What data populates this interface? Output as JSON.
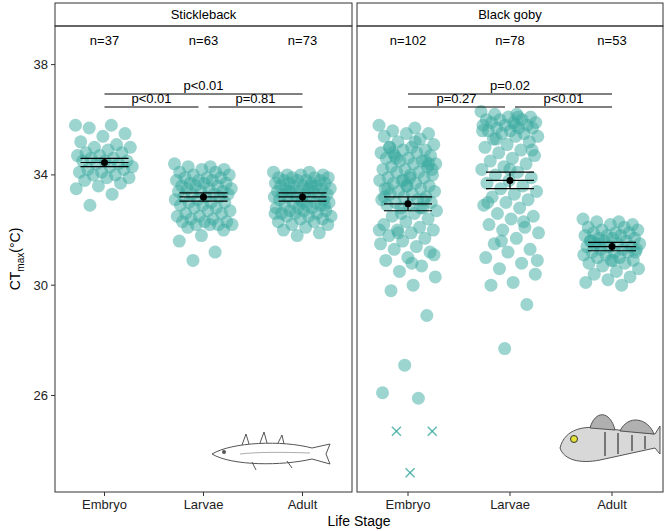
{
  "chart_data": {
    "type": "scatter",
    "x_label": "Life Stage",
    "y_label": [
      "CT",
      "max",
      "(°C)"
    ],
    "categories": [
      "Embryo",
      "Larvae",
      "Adult"
    ],
    "ylim": [
      22.5,
      39.4
    ],
    "yticks": [
      26,
      30,
      34,
      38
    ],
    "color": "#3aa99f",
    "grid": false,
    "marker": "circle",
    "panels": [
      {
        "title": "Stickleback",
        "groups": [
          {
            "n_label": "n=37",
            "mean": 34.45,
            "ci": [
              34.3,
              34.6
            ],
            "values": [
              35.8,
              35.8,
              35.7,
              35.5,
              35.4,
              35.2,
              35.1,
              35.0,
              35.0,
              34.9,
              34.8,
              34.8,
              34.7,
              34.7,
              34.6,
              34.6,
              34.5,
              34.5,
              34.5,
              34.4,
              34.4,
              34.3,
              34.3,
              34.2,
              34.2,
              34.1,
              34.1,
              34.0,
              34.0,
              33.9,
              33.9,
              33.8,
              33.7,
              33.6,
              33.5,
              33.3,
              32.9
            ]
          },
          {
            "n_label": "n=63",
            "mean": 33.2,
            "ci": [
              33.05,
              33.35
            ],
            "values": [
              34.4,
              34.3,
              34.3,
              34.2,
              34.2,
              34.1,
              34.1,
              34.0,
              34.0,
              33.9,
              33.9,
              33.9,
              33.8,
              33.8,
              33.8,
              33.7,
              33.7,
              33.7,
              33.6,
              33.6,
              33.6,
              33.5,
              33.5,
              33.5,
              33.4,
              33.4,
              33.4,
              33.3,
              33.3,
              33.3,
              33.2,
              33.2,
              33.2,
              33.1,
              33.1,
              33.0,
              33.0,
              33.0,
              32.9,
              32.9,
              32.8,
              32.8,
              32.7,
              32.7,
              32.6,
              32.6,
              32.5,
              32.5,
              32.4,
              32.4,
              32.3,
              32.3,
              32.3,
              32.2,
              32.2,
              32.2,
              32.2,
              32.1,
              32.0,
              31.8,
              31.6,
              31.2,
              30.9
            ]
          },
          {
            "n_label": "n=73",
            "mean": 33.2,
            "ci": [
              33.05,
              33.35
            ],
            "values": [
              34.1,
              34.1,
              34.0,
              34.0,
              34.0,
              33.9,
              33.9,
              33.9,
              33.9,
              33.8,
              33.8,
              33.8,
              33.8,
              33.7,
              33.7,
              33.7,
              33.7,
              33.6,
              33.6,
              33.6,
              33.6,
              33.5,
              33.5,
              33.5,
              33.5,
              33.4,
              33.4,
              33.4,
              33.4,
              33.3,
              33.3,
              33.3,
              33.3,
              33.2,
              33.2,
              33.2,
              33.2,
              33.1,
              33.1,
              33.1,
              33.0,
              33.0,
              33.0,
              32.9,
              32.9,
              32.9,
              32.8,
              32.8,
              32.8,
              32.7,
              32.7,
              32.7,
              32.6,
              32.6,
              32.6,
              32.5,
              32.5,
              32.5,
              32.4,
              32.4,
              32.3,
              32.3,
              32.2,
              32.2,
              32.1,
              32.0,
              31.9,
              31.8,
              32.6,
              33.6,
              33.4,
              32.9,
              33.0
            ]
          }
        ],
        "comparisons": [
          {
            "from": 0,
            "to": 2,
            "label": "p<0.01"
          },
          {
            "from": 0,
            "to": 1,
            "label": "p<0.01"
          },
          {
            "from": 1,
            "to": 2,
            "label": "p=0.81"
          }
        ]
      },
      {
        "title": "Black goby",
        "groups": [
          {
            "n_label": "n=102",
            "mean": 32.95,
            "ci": [
              32.7,
              33.2
            ],
            "values": [
              35.8,
              35.7,
              35.6,
              35.5,
              35.5,
              35.4,
              35.3,
              35.2,
              35.1,
              35.0,
              35.0,
              34.9,
              34.9,
              34.8,
              34.8,
              34.7,
              34.7,
              34.6,
              34.6,
              34.5,
              34.5,
              34.4,
              34.4,
              34.3,
              34.3,
              34.2,
              34.2,
              34.1,
              34.1,
              34.0,
              34.0,
              33.9,
              33.9,
              33.8,
              33.8,
              33.7,
              33.7,
              33.6,
              33.6,
              33.5,
              33.5,
              33.4,
              33.4,
              33.3,
              33.3,
              33.2,
              33.2,
              33.1,
              33.1,
              33.0,
              33.0,
              32.9,
              32.9,
              32.8,
              32.8,
              32.7,
              32.6,
              32.5,
              32.4,
              32.3,
              32.2,
              32.1,
              32.0,
              32.0,
              31.9,
              31.8,
              31.7,
              31.6,
              31.5,
              31.4,
              31.3,
              31.2,
              31.0,
              30.9,
              30.7,
              30.5,
              30.3,
              30.0,
              29.8,
              28.9,
              27.1,
              26.1,
              25.9,
              34.6,
              34.2,
              33.9,
              33.5,
              33.1,
              32.6,
              32.0,
              35.2,
              34.8,
              34.4,
              33.6,
              33.2,
              32.8,
              31.9,
              31.1,
              30.8,
              35.0,
              34.5,
              33.8
            ],
            "excluded": {
              "marker": "x",
              "values": [
                24.7,
                24.7,
                23.2
              ]
            }
          },
          {
            "n_label": "n=78",
            "mean": 33.8,
            "ci": [
              33.5,
              34.1
            ],
            "values": [
              36.3,
              36.2,
              36.2,
              36.1,
              36.1,
              36.0,
              36.0,
              36.0,
              35.9,
              35.9,
              35.9,
              35.8,
              35.8,
              35.8,
              35.7,
              35.7,
              35.7,
              35.6,
              35.6,
              35.5,
              35.5,
              35.4,
              35.4,
              35.3,
              35.2,
              35.1,
              35.0,
              34.9,
              34.8,
              34.7,
              34.6,
              34.5,
              34.4,
              34.3,
              34.2,
              34.1,
              34.0,
              33.9,
              33.8,
              33.7,
              33.6,
              33.5,
              33.4,
              33.3,
              33.2,
              33.1,
              33.0,
              32.9,
              32.8,
              32.6,
              32.5,
              32.4,
              32.2,
              32.1,
              32.0,
              31.9,
              31.7,
              31.5,
              31.3,
              31.2,
              31.0,
              30.8,
              30.6,
              30.4,
              30.1,
              30.0,
              29.3,
              27.7,
              35.6,
              36.1,
              35.3,
              34.9,
              34.2,
              33.0,
              32.3,
              31.6,
              30.9,
              35.8
            ]
          },
          {
            "n_label": "n=53",
            "mean": 31.4,
            "ci": [
              31.25,
              31.55
            ],
            "values": [
              32.4,
              32.3,
              32.3,
              32.2,
              32.2,
              32.1,
              32.1,
              32.0,
              32.0,
              31.9,
              31.9,
              31.9,
              31.8,
              31.8,
              31.8,
              31.7,
              31.7,
              31.7,
              31.6,
              31.6,
              31.6,
              31.5,
              31.5,
              31.5,
              31.4,
              31.4,
              31.4,
              31.3,
              31.3,
              31.3,
              31.2,
              31.2,
              31.2,
              31.1,
              31.1,
              31.0,
              31.0,
              30.9,
              30.9,
              30.8,
              30.8,
              30.7,
              30.6,
              30.5,
              30.4,
              30.3,
              30.2,
              30.1,
              30.0,
              31.5,
              31.2,
              30.9,
              31.6
            ]
          }
        ],
        "comparisons": [
          {
            "from": 0,
            "to": 2,
            "label": "p=0.02"
          },
          {
            "from": 0,
            "to": 1,
            "label": "p=0.27"
          },
          {
            "from": 1,
            "to": 2,
            "label": "p<0.01"
          }
        ]
      }
    ]
  }
}
